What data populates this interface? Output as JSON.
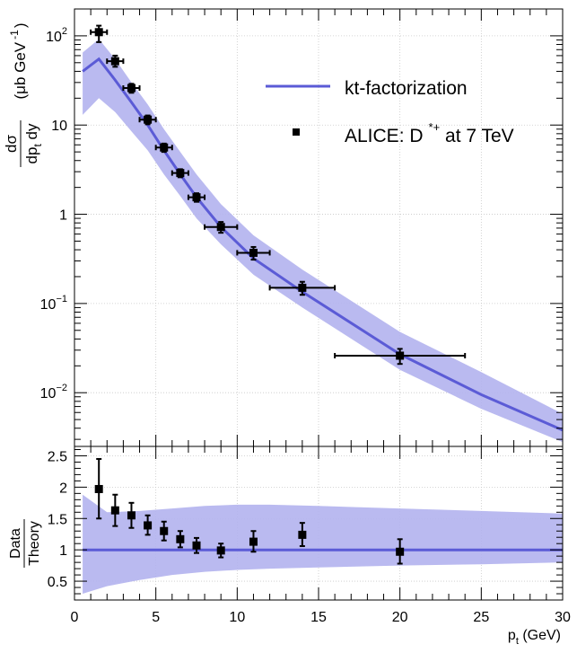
{
  "colors": {
    "theory_line": "#5b5bd6",
    "theory_band": "#b3b3ee",
    "data": "#000000",
    "grid": "#c8c8c8"
  },
  "chart_data": [
    {
      "type": "line",
      "panel": "spectrum",
      "scale": "log",
      "xlim": [
        0,
        30
      ],
      "ylim": [
        0.0025,
        200
      ],
      "grid": true,
      "yticks": [
        {
          "value": 100,
          "base": "10",
          "exp": "2"
        },
        {
          "value": 10,
          "base": "10",
          "exp": ""
        },
        {
          "value": 1,
          "base": "1",
          "exp": ""
        },
        {
          "value": 0.1,
          "base": "10",
          "exp": "−1"
        },
        {
          "value": 0.01,
          "base": "10",
          "exp": "−2"
        }
      ],
      "ylabel": {
        "frac_top": "dσ",
        "frac_bottom": "dp",
        "frac_bottom_sub": "t",
        "frac_bottom_tail": " dy",
        "units_open": "(μb GeV",
        "units_exp": "-1",
        "units_close": ")"
      },
      "legend": {
        "placement": "top-right",
        "entries": [
          {
            "marker": "line",
            "label": "kt-factorization"
          },
          {
            "marker": "square",
            "label": "ALICE: D",
            "sup": "*+",
            "tail": " at 7 TeV"
          }
        ]
      },
      "theory": {
        "name": "kt-factorization",
        "x": [
          0.5,
          1.5,
          2.5,
          3.5,
          4.5,
          5.5,
          6.5,
          7.5,
          9,
          11,
          14,
          20,
          25,
          30
        ],
        "y": [
          40,
          55,
          32,
          18,
          10,
          5.2,
          2.8,
          1.55,
          0.72,
          0.32,
          0.135,
          0.027,
          0.0095,
          0.0038
        ],
        "low": [
          13,
          20,
          14,
          8.5,
          5.2,
          2.8,
          1.6,
          0.9,
          0.46,
          0.21,
          0.09,
          0.018,
          0.0066,
          0.0028
        ],
        "high": [
          65,
          92,
          55,
          30,
          17,
          9.0,
          5.0,
          2.8,
          1.3,
          0.58,
          0.24,
          0.048,
          0.017,
          0.0058
        ]
      },
      "data": {
        "name": "ALICE: D*+ at 7 TeV",
        "points": [
          {
            "x": 1.5,
            "y": 110,
            "xerr": 0.5,
            "ylo": 85,
            "yhi": 130
          },
          {
            "x": 2.5,
            "y": 52,
            "xerr": 0.5,
            "ylo": 45,
            "yhi": 60
          },
          {
            "x": 3.5,
            "y": 26,
            "xerr": 0.5,
            "ylo": 23,
            "yhi": 29
          },
          {
            "x": 4.5,
            "y": 11.5,
            "xerr": 0.5,
            "ylo": 10.2,
            "yhi": 12.8
          },
          {
            "x": 5.5,
            "y": 5.6,
            "xerr": 0.5,
            "ylo": 5.0,
            "yhi": 6.2
          },
          {
            "x": 6.5,
            "y": 2.9,
            "xerr": 0.5,
            "ylo": 2.6,
            "yhi": 3.2
          },
          {
            "x": 7.5,
            "y": 1.55,
            "xerr": 0.5,
            "ylo": 1.38,
            "yhi": 1.72
          },
          {
            "x": 9,
            "y": 0.72,
            "xerr": 1,
            "ylo": 0.62,
            "yhi": 0.82
          },
          {
            "x": 11,
            "y": 0.37,
            "xerr": 1,
            "ylo": 0.31,
            "yhi": 0.43
          },
          {
            "x": 14,
            "y": 0.15,
            "xerr": 2,
            "ylo": 0.125,
            "yhi": 0.175
          },
          {
            "x": 20,
            "y": 0.026,
            "xerr": 4,
            "ylo": 0.021,
            "yhi": 0.031
          }
        ]
      }
    },
    {
      "type": "line",
      "panel": "ratio",
      "xlim": [
        0,
        30
      ],
      "ylim": [
        0.2,
        2.65
      ],
      "grid": true,
      "xlabel": {
        "main": "p",
        "sub": "t",
        "tail": " (GeV)"
      },
      "ylabel": {
        "frac_top": "Data",
        "frac_bottom": "Theory"
      },
      "yticks": [
        "0.5",
        "1",
        "1.5",
        "2",
        "2.5"
      ],
      "xticks": [
        "0",
        "5",
        "10",
        "15",
        "20",
        "25",
        "30"
      ],
      "theory": {
        "x": [
          0.5,
          2,
          4,
          6,
          8,
          10,
          12,
          15,
          20,
          25,
          30
        ],
        "y": [
          1,
          1,
          1,
          1,
          1,
          1,
          1,
          1,
          1,
          1,
          1
        ],
        "low": [
          0.3,
          0.42,
          0.52,
          0.6,
          0.65,
          0.68,
          0.7,
          0.72,
          0.75,
          0.77,
          0.8
        ],
        "high": [
          1.88,
          1.6,
          1.62,
          1.66,
          1.7,
          1.72,
          1.72,
          1.7,
          1.66,
          1.62,
          1.58
        ]
      },
      "data": {
        "points": [
          {
            "x": 1.5,
            "y": 1.97,
            "xerr": 0,
            "ylo": 1.5,
            "yhi": 2.45
          },
          {
            "x": 2.5,
            "y": 1.63,
            "xerr": 0,
            "ylo": 1.38,
            "yhi": 1.88
          },
          {
            "x": 3.5,
            "y": 1.55,
            "xerr": 0,
            "ylo": 1.35,
            "yhi": 1.75
          },
          {
            "x": 4.5,
            "y": 1.39,
            "xerr": 0,
            "ylo": 1.24,
            "yhi": 1.55
          },
          {
            "x": 5.5,
            "y": 1.3,
            "xerr": 0,
            "ylo": 1.15,
            "yhi": 1.45
          },
          {
            "x": 6.5,
            "y": 1.17,
            "xerr": 0,
            "ylo": 1.04,
            "yhi": 1.3
          },
          {
            "x": 7.5,
            "y": 1.07,
            "xerr": 0,
            "ylo": 0.95,
            "yhi": 1.19
          },
          {
            "x": 9,
            "y": 0.99,
            "xerr": 0,
            "ylo": 0.88,
            "yhi": 1.1
          },
          {
            "x": 11,
            "y": 1.13,
            "xerr": 0,
            "ylo": 0.97,
            "yhi": 1.3
          },
          {
            "x": 14,
            "y": 1.24,
            "xerr": 0,
            "ylo": 1.06,
            "yhi": 1.43
          },
          {
            "x": 20,
            "y": 0.97,
            "xerr": 0,
            "ylo": 0.78,
            "yhi": 1.17
          }
        ]
      }
    }
  ]
}
